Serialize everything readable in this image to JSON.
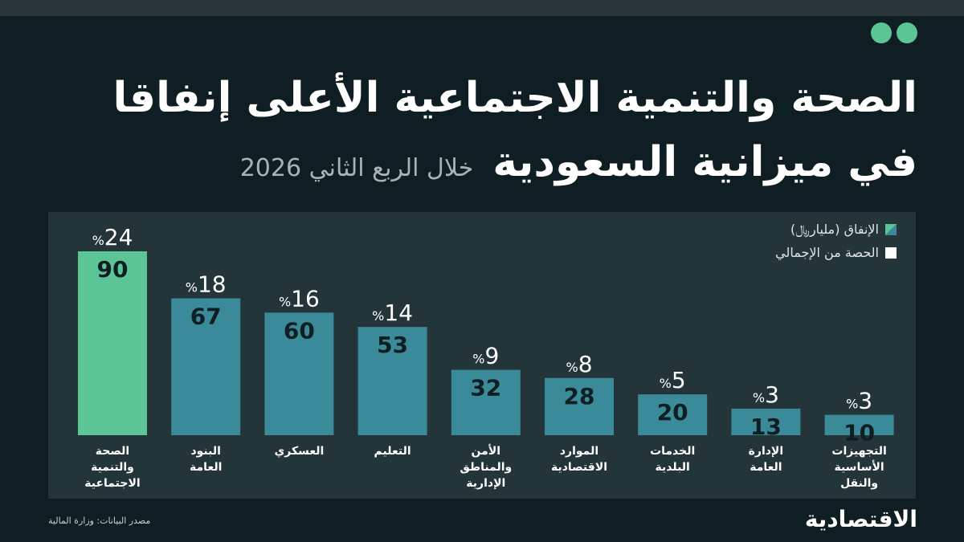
{
  "header": {
    "title_line1": "الصحة والتنمية الاجتماعية الأعلى إنفاقا",
    "title_line2": "في ميزانية السعودية",
    "subtitle": "خلال الربع الثاني 2026"
  },
  "legend": {
    "items": [
      {
        "label": "الإنفاق (مليار﷼)"
      },
      {
        "label": "الحصة من الإجمالي"
      }
    ]
  },
  "colors": {
    "highlight": "#5cc596",
    "bar": "#3a8a99",
    "value_text": "#0e1e22",
    "background": "#0e1e22",
    "panel": "#243539"
  },
  "chart_data": {
    "type": "bar",
    "categories": [
      [
        "الصحة",
        "والتنمية",
        "الاجتماعية"
      ],
      [
        "البنود",
        "العامة"
      ],
      [
        "العسكري"
      ],
      [
        "التعليم"
      ],
      [
        "الأمن",
        "والمناطق",
        "الإدارية"
      ],
      [
        "الموارد",
        "الاقتصادية"
      ],
      [
        "الخدمات",
        "البلدية"
      ],
      [
        "الإدارة",
        "العامة"
      ],
      [
        "التجهيزات",
        "الأساسية",
        "والنقل"
      ]
    ],
    "series": [
      {
        "name": "الإنفاق (مليار﷼)",
        "values": [
          90,
          67,
          60,
          53,
          32,
          28,
          20,
          13,
          10
        ]
      },
      {
        "name": "الحصة من الإجمالي",
        "values": [
          24,
          18,
          16,
          14,
          9,
          8,
          5,
          3,
          3
        ]
      }
    ],
    "percent_symbol": "%",
    "ylim": [
      0,
      90
    ]
  },
  "footer": {
    "source": "مصدر البيانات: وزارة المالية",
    "logo": "الاقتصادية"
  }
}
